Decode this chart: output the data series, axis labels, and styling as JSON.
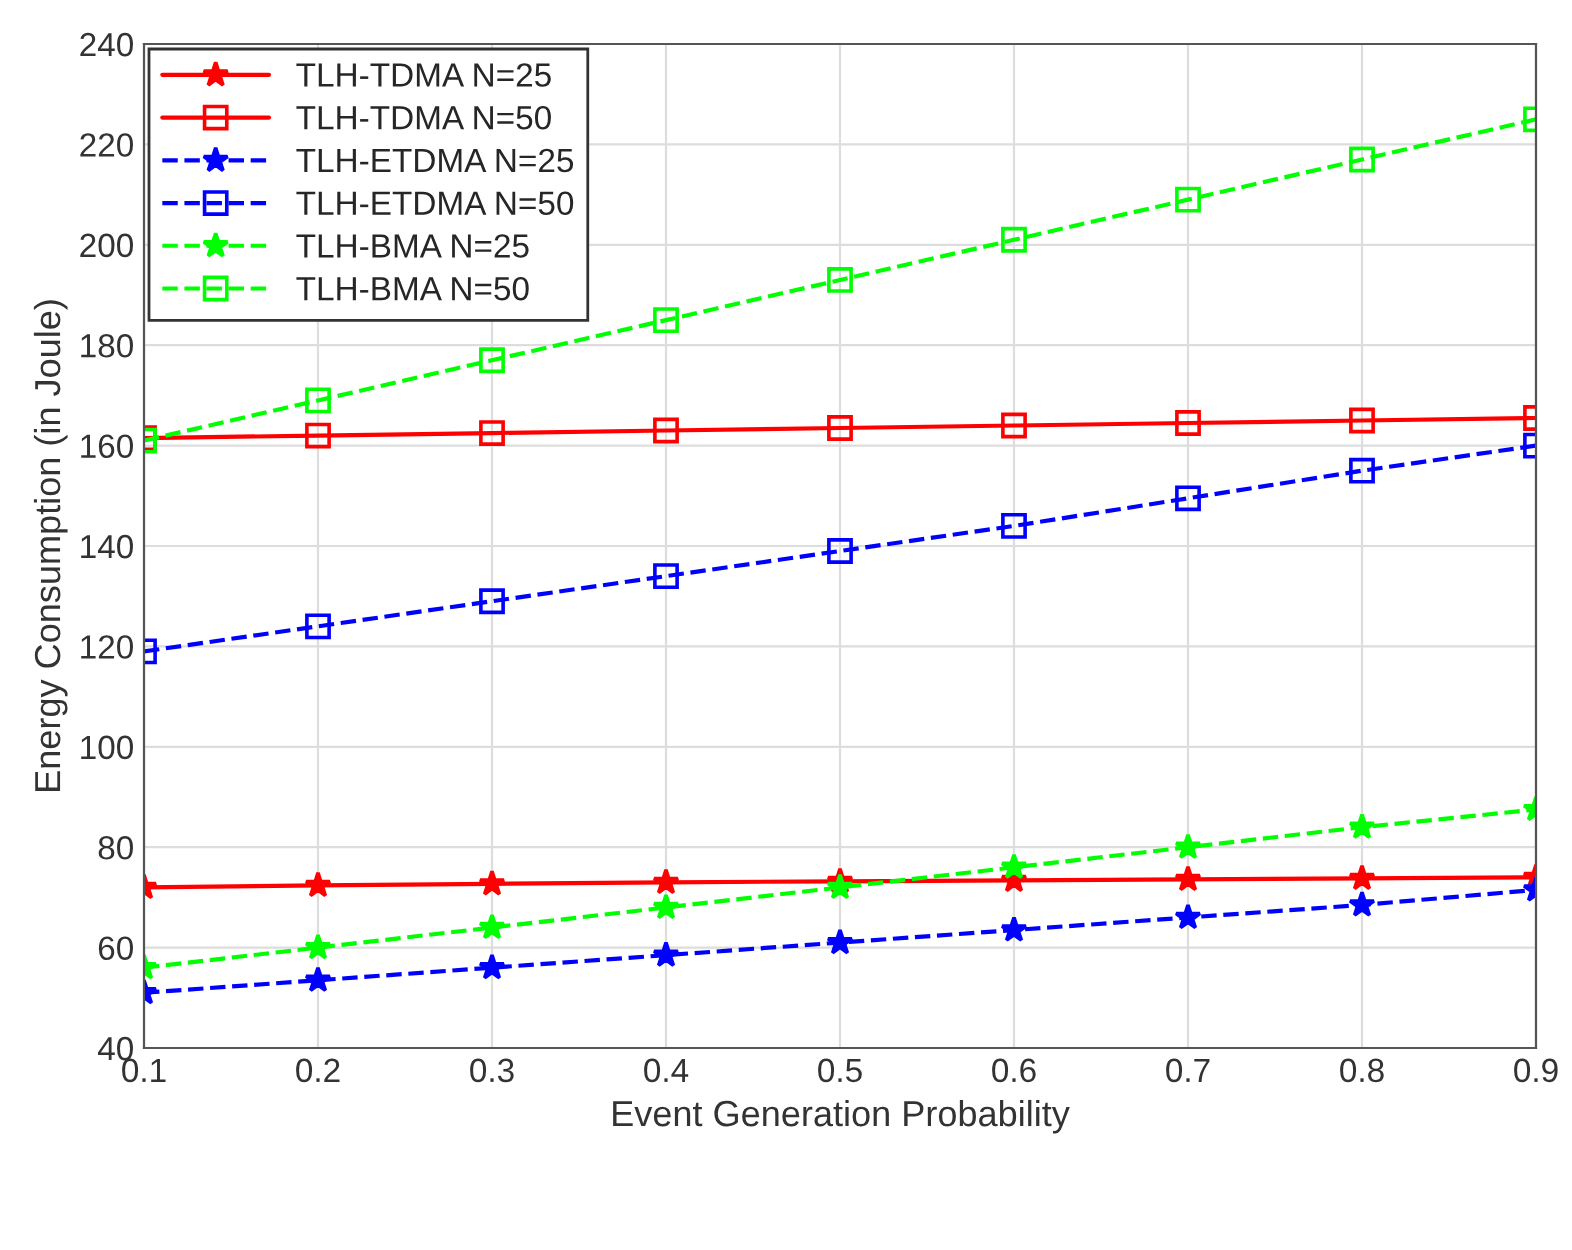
{
  "chart_data": {
    "type": "line",
    "xlabel": "Event Generation Probability",
    "ylabel": "Energy Consumption (in Joule)",
    "x": [
      0.1,
      0.2,
      0.3,
      0.4,
      0.5,
      0.6,
      0.7,
      0.8,
      0.9
    ],
    "series": [
      {
        "name": "TLH-TDMA N=25",
        "color": "#ff0000",
        "marker": "star",
        "line_style": "solid",
        "values": [
          72,
          72.4,
          72.7,
          73,
          73.2,
          73.4,
          73.6,
          73.8,
          74
        ]
      },
      {
        "name": "TLH-TDMA N=50",
        "color": "#ff0000",
        "marker": "square",
        "line_style": "solid",
        "values": [
          161.5,
          162,
          162.5,
          163,
          163.5,
          164,
          164.5,
          165,
          165.5
        ]
      },
      {
        "name": "TLH-ETDMA N=25",
        "color": "#0000ff",
        "marker": "star",
        "line_style": "dashed",
        "values": [
          51,
          53.5,
          56,
          58.5,
          61,
          63.5,
          66,
          68.5,
          71.5
        ]
      },
      {
        "name": "TLH-ETDMA N=50",
        "color": "#0000ff",
        "marker": "square",
        "line_style": "dashed",
        "values": [
          119,
          124,
          129,
          134,
          139,
          144,
          149.5,
          155,
          160
        ]
      },
      {
        "name": "TLH-BMA N=25",
        "color": "#00ff00",
        "marker": "star",
        "line_style": "dashed",
        "values": [
          56,
          60,
          64,
          68,
          72,
          76,
          80,
          84,
          87.5
        ]
      },
      {
        "name": "TLH-BMA N=50",
        "color": "#00ff00",
        "marker": "square",
        "line_style": "dashed",
        "values": [
          161,
          169,
          177,
          185,
          193,
          201,
          209,
          217,
          225
        ]
      }
    ],
    "xlim": [
      0.1,
      0.9
    ],
    "xticks": [
      0.1,
      0.2,
      0.3,
      0.4,
      0.5,
      0.6,
      0.7,
      0.8,
      0.9
    ],
    "ylim": [
      40,
      240
    ],
    "yticks": [
      40,
      60,
      80,
      100,
      120,
      140,
      160,
      180,
      200,
      220,
      240
    ],
    "grid": true,
    "legend": "top left"
  }
}
